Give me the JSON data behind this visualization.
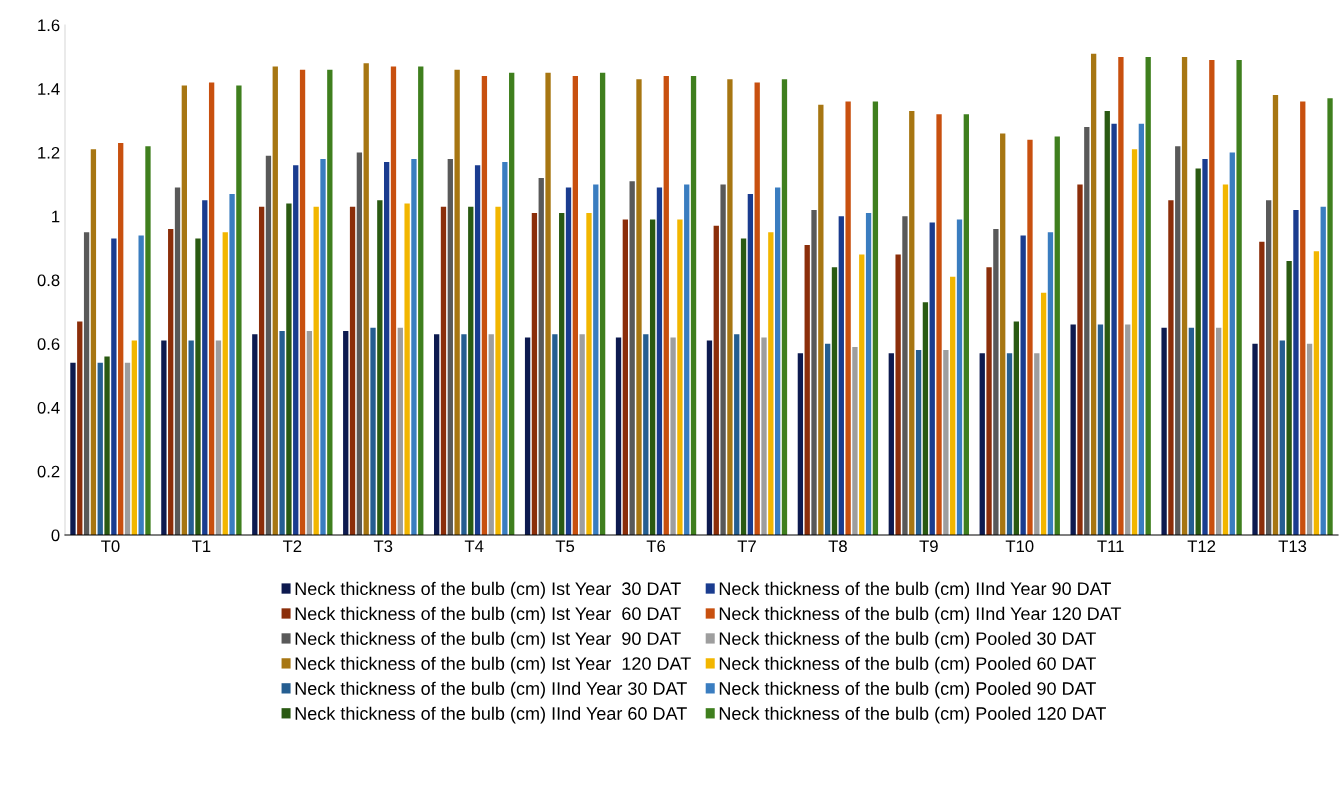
{
  "chart_data": {
    "type": "bar",
    "categories": [
      "T0",
      "T1",
      "T2",
      "T3",
      "T4",
      "T5",
      "T6",
      "T7",
      "T8",
      "T9",
      "T10",
      "T11",
      "T12",
      "T13"
    ],
    "ylim": [
      0,
      1.6
    ],
    "yticks": [
      0,
      0.2,
      0.4,
      0.6,
      0.8,
      1,
      1.2,
      1.4,
      1.6
    ],
    "grid": false,
    "legend": "bottom",
    "series": [
      {
        "name": "Neck thickness of the bulb (cm) Ist Year  30 DAT",
        "color": "#0d1a4f",
        "values": [
          0.54,
          0.61,
          0.63,
          0.64,
          0.63,
          0.62,
          0.62,
          0.61,
          0.57,
          0.57,
          0.57,
          0.66,
          0.65,
          0.6
        ]
      },
      {
        "name": "Neck thickness of the bulb (cm) Ist Year  60 DAT",
        "color": "#8b2e0a",
        "values": [
          0.67,
          0.96,
          1.03,
          1.03,
          1.03,
          1.01,
          0.99,
          0.97,
          0.91,
          0.88,
          0.84,
          1.1,
          1.05,
          0.92
        ]
      },
      {
        "name": "Neck thickness of the bulb (cm) Ist Year  90 DAT",
        "color": "#595959",
        "values": [
          0.95,
          1.09,
          1.19,
          1.2,
          1.18,
          1.12,
          1.11,
          1.1,
          1.02,
          1.0,
          0.96,
          1.28,
          1.22,
          1.05
        ]
      },
      {
        "name": "Neck thickness of the bulb (cm) Ist Year  120 DAT",
        "color": "#a77612",
        "values": [
          1.21,
          1.41,
          1.47,
          1.48,
          1.46,
          1.45,
          1.43,
          1.43,
          1.35,
          1.33,
          1.26,
          1.51,
          1.5,
          1.38
        ]
      },
      {
        "name": "Neck thickness of the bulb (cm) IInd Year 30 DAT",
        "color": "#255e91",
        "values": [
          0.54,
          0.61,
          0.64,
          0.65,
          0.63,
          0.63,
          0.63,
          0.63,
          0.6,
          0.58,
          0.57,
          0.66,
          0.65,
          0.61
        ]
      },
      {
        "name": "Neck thickness of the bulb (cm) IInd Year 60 DAT",
        "color": "#2a5a12",
        "values": [
          0.56,
          0.93,
          1.04,
          1.05,
          1.03,
          1.01,
          0.99,
          0.93,
          0.84,
          0.73,
          0.67,
          1.33,
          1.15,
          0.86
        ]
      },
      {
        "name": "Neck thickness of the bulb (cm) IInd Year 90 DAT",
        "color": "#1a3c8f",
        "values": [
          0.93,
          1.05,
          1.16,
          1.17,
          1.16,
          1.09,
          1.09,
          1.07,
          1.0,
          0.98,
          0.94,
          1.29,
          1.18,
          1.02
        ]
      },
      {
        "name": "Neck thickness of the bulb (cm) IInd Year 120 DAT",
        "color": "#c8500f",
        "values": [
          1.23,
          1.42,
          1.46,
          1.47,
          1.44,
          1.44,
          1.44,
          1.42,
          1.36,
          1.32,
          1.24,
          1.5,
          1.49,
          1.36
        ]
      },
      {
        "name": "Neck thickness of the bulb (cm) Pooled 30 DAT",
        "color": "#9e9e9e",
        "values": [
          0.54,
          0.61,
          0.64,
          0.65,
          0.63,
          0.63,
          0.62,
          0.62,
          0.59,
          0.58,
          0.57,
          0.66,
          0.65,
          0.6
        ]
      },
      {
        "name": "Neck thickness of the bulb (cm) Pooled 60 DAT",
        "color": "#f2b600",
        "values": [
          0.61,
          0.95,
          1.03,
          1.04,
          1.03,
          1.01,
          0.99,
          0.95,
          0.88,
          0.81,
          0.76,
          1.21,
          1.1,
          0.89
        ]
      },
      {
        "name": "Neck thickness of the bulb (cm) Pooled 90 DAT",
        "color": "#3a7dc0",
        "values": [
          0.94,
          1.07,
          1.18,
          1.18,
          1.17,
          1.1,
          1.1,
          1.09,
          1.01,
          0.99,
          0.95,
          1.29,
          1.2,
          1.03
        ]
      },
      {
        "name": "Neck thickness of the bulb (cm) Pooled 120 DAT",
        "color": "#3f7f1e",
        "values": [
          1.22,
          1.41,
          1.46,
          1.47,
          1.45,
          1.45,
          1.44,
          1.43,
          1.36,
          1.32,
          1.25,
          1.5,
          1.49,
          1.37
        ]
      }
    ]
  }
}
